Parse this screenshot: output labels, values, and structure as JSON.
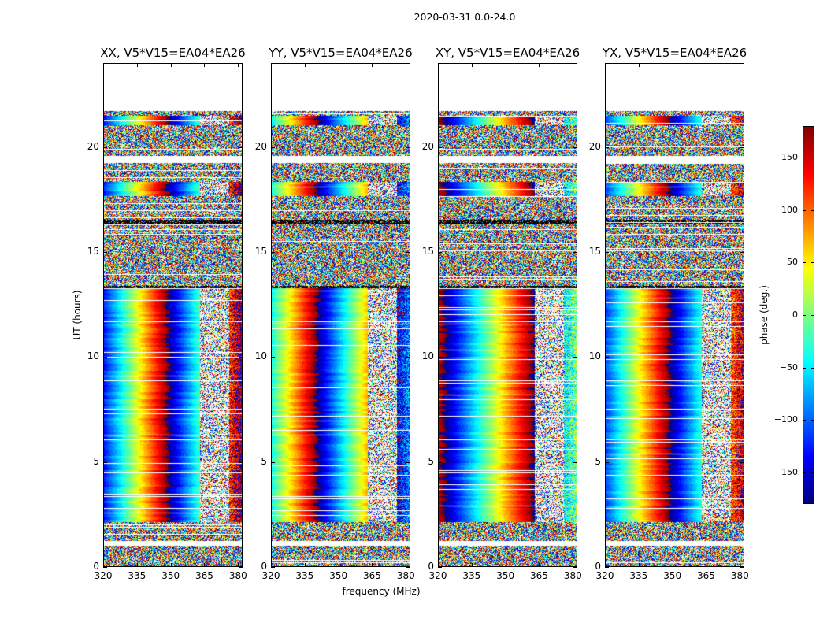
{
  "chart_data": {
    "type": "heatmap",
    "title": "2020-03-31 0.0-24.0",
    "xlabel": "frequency (MHz)",
    "ylabel": "UT (hours)",
    "xlim": [
      320,
      382
    ],
    "ylim": [
      0,
      24
    ],
    "xticks": [
      320,
      335,
      350,
      365,
      380
    ],
    "yticks": [
      0,
      5,
      10,
      15,
      20
    ],
    "panels": [
      {
        "title": "XX, V5*V15=EA04*EA26"
      },
      {
        "title": "YY, V5*V15=EA04*EA26"
      },
      {
        "title": "XY, V5*V15=EA04*EA26"
      },
      {
        "title": "YX, V5*V15=EA04*EA26"
      }
    ],
    "colorbar": {
      "label": "phase (deg.)",
      "range": [
        -180,
        180
      ],
      "ticks": [
        150,
        100,
        50,
        0,
        -50,
        -100,
        -150
      ],
      "colormap": "jet",
      "dots": "......"
    }
  }
}
